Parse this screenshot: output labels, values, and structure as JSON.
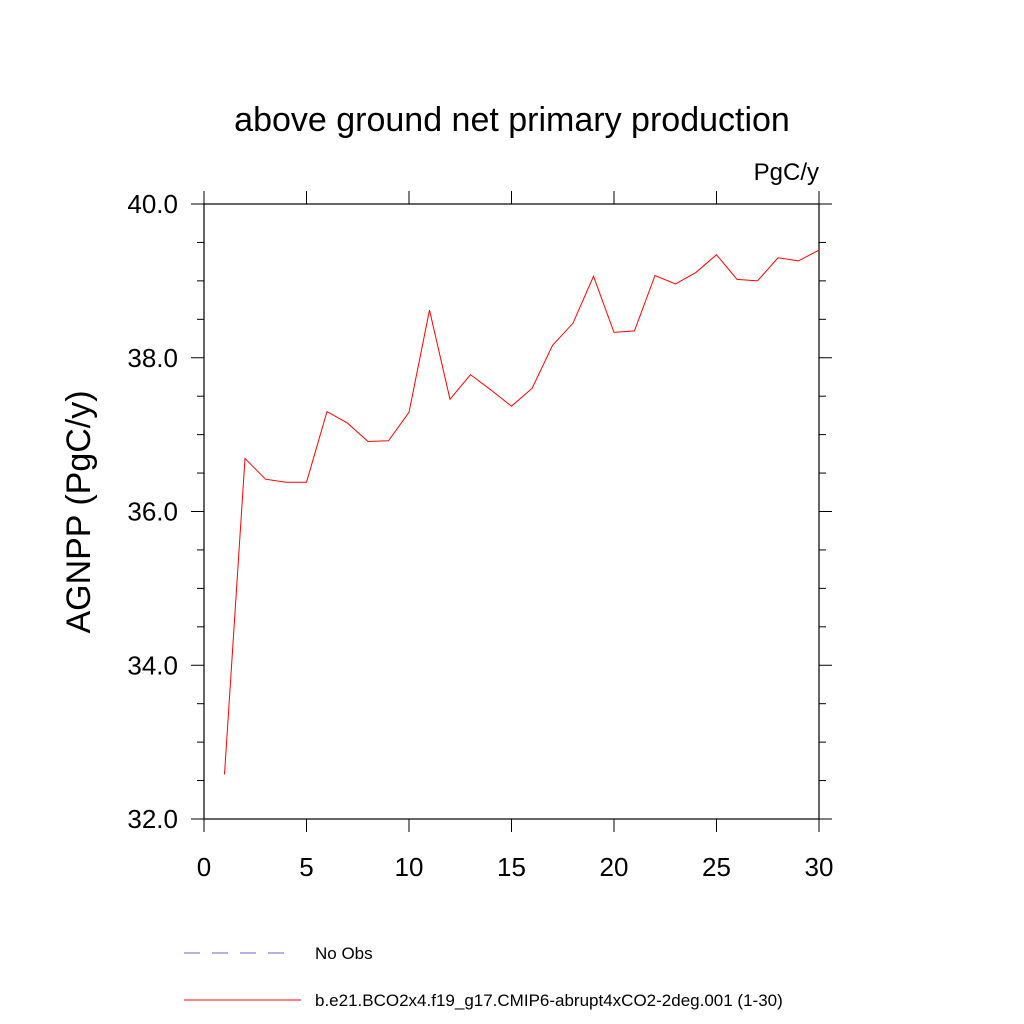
{
  "chart_data": {
    "type": "line",
    "title": "above ground net primary production",
    "units_label": "PgC/y",
    "xlabel": "",
    "ylabel": "AGNPP  (PgC/y)",
    "xlim": [
      0,
      30
    ],
    "ylim": [
      32.0,
      40.0
    ],
    "x_ticks": [
      0,
      5,
      10,
      15,
      20,
      25,
      30
    ],
    "x_tick_labels": [
      "0",
      "5",
      "10",
      "15",
      "20",
      "25",
      "30"
    ],
    "y_ticks": [
      32.0,
      34.0,
      36.0,
      38.0,
      40.0
    ],
    "y_tick_labels": [
      "32.0",
      "34.0",
      "36.0",
      "38.0",
      "40.0"
    ],
    "grid": false,
    "series": [
      {
        "name": "b.e21.BCO2x4.f19_g17.CMIP6-abrupt4xCO2-2deg.001 (1-30)",
        "color": "#ff0000",
        "style": "solid",
        "x": [
          1,
          2,
          3,
          4,
          5,
          6,
          7,
          8,
          9,
          10,
          11,
          12,
          13,
          14,
          15,
          16,
          17,
          18,
          19,
          20,
          21,
          22,
          23,
          24,
          25,
          26,
          27,
          28,
          29,
          30
        ],
        "values": [
          32.58,
          36.69,
          36.42,
          36.38,
          36.38,
          37.3,
          37.15,
          36.91,
          36.92,
          37.29,
          38.62,
          37.46,
          37.78,
          37.58,
          37.37,
          37.6,
          38.16,
          38.45,
          39.06,
          38.33,
          38.35,
          39.07,
          38.96,
          39.11,
          39.34,
          39.02,
          39.0,
          39.3,
          39.26,
          39.4
        ]
      }
    ],
    "legend": [
      {
        "label": "No Obs",
        "color": "#6666cc",
        "style": "dashed"
      },
      {
        "label": "b.e21.BCO2x4.f19_g17.CMIP6-abrupt4xCO2-2deg.001 (1-30)",
        "color": "#ff0000",
        "style": "solid"
      }
    ]
  }
}
